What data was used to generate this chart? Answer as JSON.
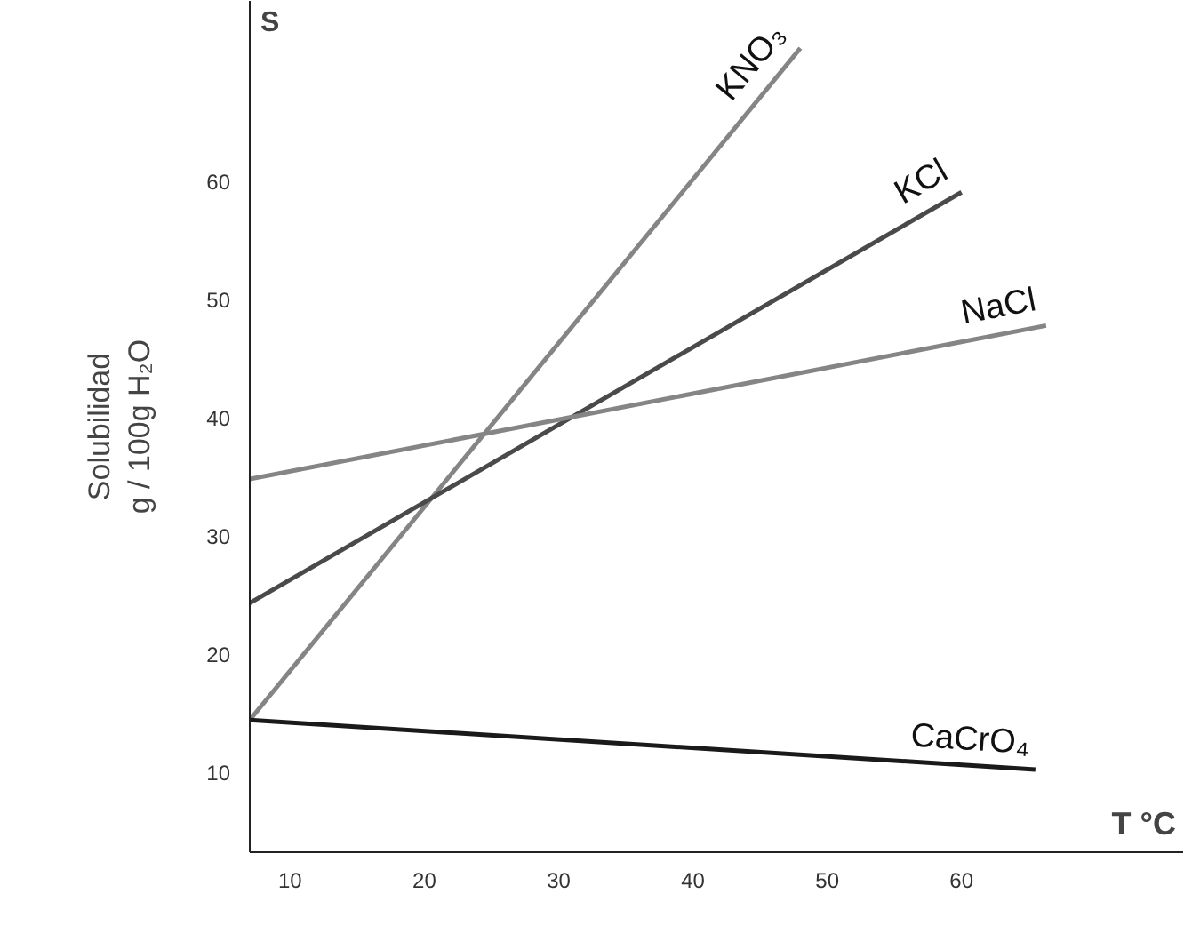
{
  "chart_data": {
    "type": "line",
    "xlabel": "T °C",
    "ylabel": "Solubilidad\ng / 100g H₂O",
    "annotations": [
      "S"
    ],
    "xlim": [
      7,
      76.5
    ],
    "ylim": [
      3.2,
      75.3
    ],
    "xticks": [
      10,
      20,
      30,
      40,
      50,
      60
    ],
    "yticks": [
      10,
      20,
      30,
      40,
      50,
      60
    ],
    "grid": false,
    "series": [
      {
        "name": "KNO₃",
        "color": "#858585",
        "x": [
          7,
          48
        ],
        "values": [
          14.4,
          71.3
        ]
      },
      {
        "name": "KCl",
        "color": "#4a4a4a",
        "x": [
          7,
          60
        ],
        "values": [
          24.3,
          59.1
        ]
      },
      {
        "name": "NaCl",
        "color": "#858585",
        "x": [
          7,
          66.3
        ],
        "values": [
          34.8,
          47.8
        ]
      },
      {
        "name": "CaCrO₄",
        "color": "#1a1a1a",
        "x": [
          7,
          65.5
        ],
        "values": [
          14.4,
          10.2
        ]
      }
    ]
  }
}
